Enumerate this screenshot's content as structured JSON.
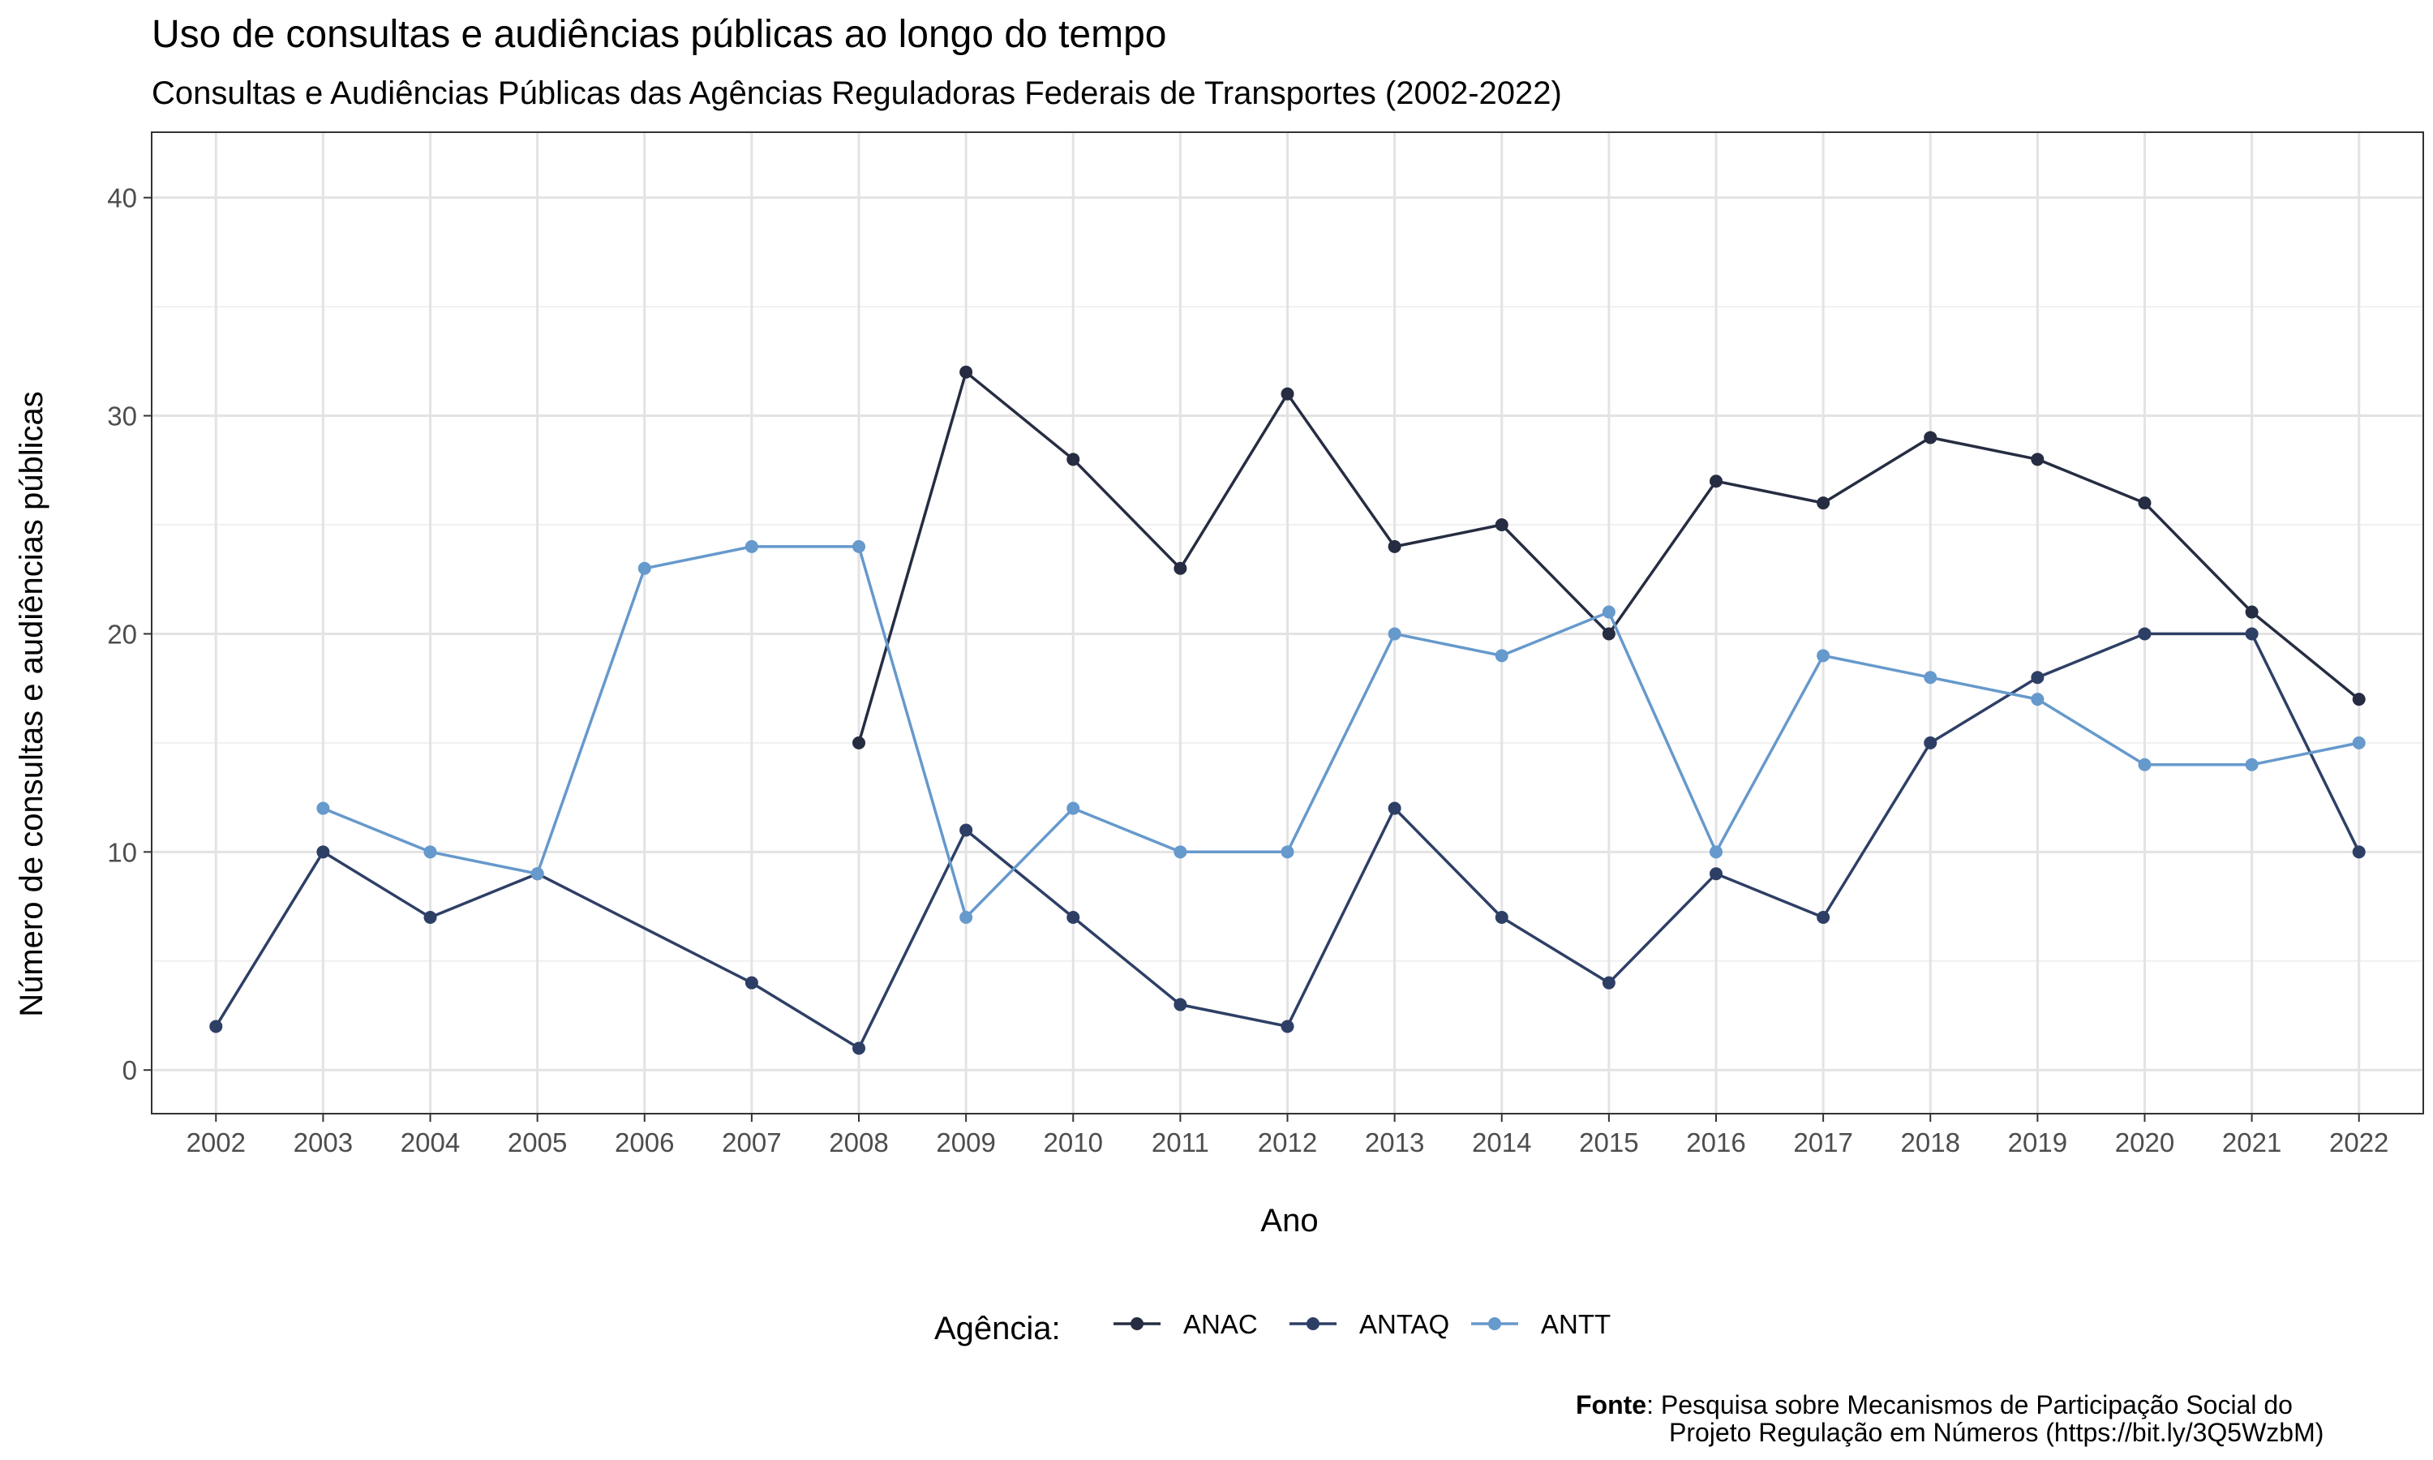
{
  "chart_data": {
    "type": "line",
    "title": "Uso de consultas e audiências públicas ao longo do tempo",
    "subtitle": "Consultas e Audiências Públicas das Agências Reguladoras Federais de Transportes (2002-2022)",
    "xlabel": "Ano",
    "ylabel": "Número de consultas e audiências públicas",
    "x": [
      2002,
      2003,
      2004,
      2005,
      2006,
      2007,
      2008,
      2009,
      2010,
      2011,
      2012,
      2013,
      2014,
      2015,
      2016,
      2017,
      2018,
      2019,
      2020,
      2021,
      2022
    ],
    "xlim": [
      2001.4,
      2022.6
    ],
    "ylim": [
      -2,
      43
    ],
    "yticks": [
      0,
      10,
      20,
      30,
      40
    ],
    "grid": true,
    "legend": {
      "title": "Agência:",
      "position": "bottom"
    },
    "series": [
      {
        "name": "ANAC",
        "color": "#262d42",
        "points": [
          {
            "x": 2008,
            "y": 15
          },
          {
            "x": 2009,
            "y": 32
          },
          {
            "x": 2010,
            "y": 28
          },
          {
            "x": 2011,
            "y": 23
          },
          {
            "x": 2012,
            "y": 31
          },
          {
            "x": 2013,
            "y": 24
          },
          {
            "x": 2014,
            "y": 25
          },
          {
            "x": 2015,
            "y": 20
          },
          {
            "x": 2016,
            "y": 27
          },
          {
            "x": 2017,
            "y": 26
          },
          {
            "x": 2018,
            "y": 29
          },
          {
            "x": 2019,
            "y": 28
          },
          {
            "x": 2020,
            "y": 26
          },
          {
            "x": 2021,
            "y": 21
          },
          {
            "x": 2022,
            "y": 17
          }
        ]
      },
      {
        "name": "ANTAQ",
        "color": "#2e3f66",
        "points": [
          {
            "x": 2002,
            "y": 2
          },
          {
            "x": 2003,
            "y": 10
          },
          {
            "x": 2004,
            "y": 7
          },
          {
            "x": 2005,
            "y": 9
          },
          {
            "x": 2007,
            "y": 4
          },
          {
            "x": 2008,
            "y": 1
          },
          {
            "x": 2009,
            "y": 11
          },
          {
            "x": 2010,
            "y": 7
          },
          {
            "x": 2011,
            "y": 3
          },
          {
            "x": 2012,
            "y": 2
          },
          {
            "x": 2013,
            "y": 12
          },
          {
            "x": 2014,
            "y": 7
          },
          {
            "x": 2015,
            "y": 4
          },
          {
            "x": 2016,
            "y": 9
          },
          {
            "x": 2017,
            "y": 7
          },
          {
            "x": 2018,
            "y": 15
          },
          {
            "x": 2019,
            "y": 18
          },
          {
            "x": 2020,
            "y": 20
          },
          {
            "x": 2021,
            "y": 20
          },
          {
            "x": 2022,
            "y": 10
          }
        ]
      },
      {
        "name": "ANTT",
        "color": "#6699cc",
        "points": [
          {
            "x": 2003,
            "y": 12
          },
          {
            "x": 2004,
            "y": 10
          },
          {
            "x": 2005,
            "y": 9
          },
          {
            "x": 2006,
            "y": 23
          },
          {
            "x": 2007,
            "y": 24
          },
          {
            "x": 2008,
            "y": 24
          },
          {
            "x": 2009,
            "y": 7
          },
          {
            "x": 2010,
            "y": 12
          },
          {
            "x": 2011,
            "y": 10
          },
          {
            "x": 2012,
            "y": 10
          },
          {
            "x": 2013,
            "y": 20
          },
          {
            "x": 2014,
            "y": 19
          },
          {
            "x": 2015,
            "y": 21
          },
          {
            "x": 2016,
            "y": 10
          },
          {
            "x": 2017,
            "y": 19
          },
          {
            "x": 2018,
            "y": 18
          },
          {
            "x": 2019,
            "y": 17
          },
          {
            "x": 2020,
            "y": 14
          },
          {
            "x": 2021,
            "y": 14
          },
          {
            "x": 2022,
            "y": 15
          }
        ]
      }
    ],
    "caption": {
      "bold": "Fonte",
      "line1": ": Pesquisa sobre Mecanismos de Participação Social do",
      "line2": "Projeto Regulação em Números (https://bit.ly/3Q5WzbM)"
    }
  }
}
